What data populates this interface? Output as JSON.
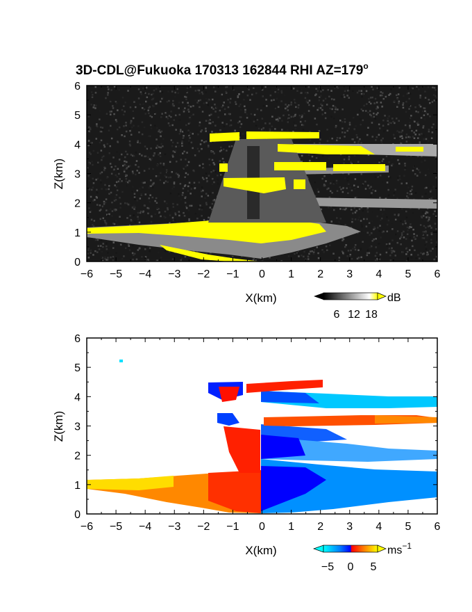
{
  "chart_data": [
    {
      "type": "heatmap",
      "title": "3D-CDL@Fukuoka 170313 162844 RHI AZ=179",
      "title_superscript": "o",
      "xlabel": "X(km)",
      "ylabel": "Z(km)",
      "xlim": [
        -6,
        6
      ],
      "ylim": [
        0,
        6
      ],
      "x_ticks": [
        "-6",
        "-5",
        "-4",
        "-3",
        "-2",
        "-1",
        "0",
        "1",
        "2",
        "3",
        "4",
        "5",
        "6"
      ],
      "y_ticks": [
        "0",
        "1",
        "2",
        "3",
        "4",
        "5",
        "6"
      ],
      "background": "noise",
      "colorbar": {
        "unit": "dB",
        "ticks": [
          "6",
          "12",
          "18"
        ],
        "range": [
          0,
          20
        ],
        "colors": [
          "#000000",
          "#ffffff",
          "#ffff00"
        ]
      },
      "layers": [
        {
          "x": [
            -6,
            0,
            2.6
          ],
          "z_top": [
            1.1,
            1.4,
            1.2
          ],
          "value": 20
        },
        {
          "x": [
            -2,
            6
          ],
          "z": 4.3,
          "value": 19
        },
        {
          "x": [
            -1.5,
            4.2
          ],
          "z": 3.2,
          "value": 19
        },
        {
          "x": [
            -1.3,
            1
          ],
          "z": 2.7,
          "value": 19
        },
        {
          "x": [
            0,
            6
          ],
          "z": 3.9,
          "value": 14
        },
        {
          "x": [
            0,
            6
          ],
          "z": 2.0,
          "value": 11
        }
      ]
    },
    {
      "type": "heatmap",
      "xlabel": "X(km)",
      "ylabel": "Z(km)",
      "xlim": [
        -6,
        6
      ],
      "ylim": [
        0,
        6
      ],
      "x_ticks": [
        "-6",
        "-5",
        "-4",
        "-3",
        "-2",
        "-1",
        "0",
        "1",
        "2",
        "3",
        "4",
        "5",
        "6"
      ],
      "y_ticks": [
        "0",
        "1",
        "2",
        "3",
        "4",
        "5",
        "6"
      ],
      "background": "white",
      "colorbar": {
        "unit": "ms",
        "unit_superscript": "−1",
        "ticks": [
          "−5",
          "0",
          "5"
        ],
        "range": [
          -7,
          7
        ],
        "colors": [
          "#00ffff",
          "#0080ff",
          "#0000ff",
          "#ff0000",
          "#ff8000",
          "#ffff00"
        ]
      },
      "layers": [
        {
          "x": [
            -6,
            -0.3
          ],
          "z": 1.0,
          "velocity": 5
        },
        {
          "x": [
            0,
            6
          ],
          "z": 1.0,
          "velocity": -5
        },
        {
          "x": [
            -1.3,
            0
          ],
          "z": 2.3,
          "velocity": 3
        },
        {
          "x": [
            0,
            6
          ],
          "z": 2.2,
          "velocity": -5
        },
        {
          "x": [
            -1.5,
            0
          ],
          "z": 3.2,
          "velocity": -3
        },
        {
          "x": [
            0.6,
            6
          ],
          "z": 3.2,
          "velocity": 4
        },
        {
          "x": [
            -1.8,
            2.2
          ],
          "z": 4.3,
          "velocity": 3
        },
        {
          "x": [
            0,
            6
          ],
          "z": 3.9,
          "velocity": -6
        }
      ]
    }
  ]
}
